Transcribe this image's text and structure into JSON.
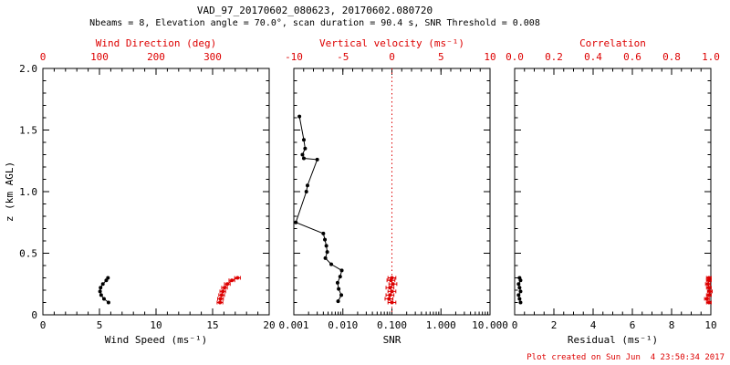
{
  "title": "VAD_97_20170602_080623, 20170602.080720",
  "subtitle": "Nbeams = 8, Elevation angle = 70.0°, scan duration = 90.4 s, SNR Threshold = 0.008",
  "footer": "Plot created on Sun Jun  4 23:50:34 2017",
  "colors": {
    "axis": "#000000",
    "accent": "#dd0000"
  },
  "chart_data": {
    "type": "scatter",
    "y_axis": {
      "label": "z (km AGL)",
      "lim": [
        0,
        2
      ],
      "minor_step": 0.1,
      "ticks": [
        {
          "v": 0,
          "label": "0"
        },
        {
          "v": 0.5,
          "label": "0.5"
        },
        {
          "v": 1.0,
          "label": "1.0"
        },
        {
          "v": 1.5,
          "label": "1.5"
        },
        {
          "v": 2.0,
          "label": "2.0"
        }
      ]
    },
    "panels": [
      {
        "name": "wind",
        "bottom_axis": {
          "label": "Wind Speed (ms⁻¹)",
          "lim": [
            0,
            20
          ],
          "scale": "linear",
          "minor_step": 1,
          "ticks": [
            {
              "v": 0,
              "label": "0"
            },
            {
              "v": 5,
              "label": "5"
            },
            {
              "v": 10,
              "label": "10"
            },
            {
              "v": 15,
              "label": "15"
            },
            {
              "v": 20,
              "label": "20"
            }
          ]
        },
        "top_axis": {
          "label": "Wind Direction (deg)",
          "lim": [
            0,
            400
          ],
          "scale": "linear",
          "minor_step": 20,
          "ticks": [
            {
              "v": 0,
              "label": "0"
            },
            {
              "v": 100,
              "label": "100"
            },
            {
              "v": 200,
              "label": "200"
            },
            {
              "v": 300,
              "label": "300"
            }
          ]
        },
        "series": [
          {
            "name": "wind-speed",
            "axis": "bottom",
            "color": "#000000",
            "line": true,
            "points": [
              [
                5.8,
                0.1
              ],
              [
                5.4,
                0.13
              ],
              [
                5.15,
                0.16
              ],
              [
                5.05,
                0.19
              ],
              [
                5.1,
                0.22
              ],
              [
                5.3,
                0.25
              ],
              [
                5.6,
                0.28
              ],
              [
                5.75,
                0.3
              ]
            ]
          },
          {
            "name": "wind-direction",
            "axis": "top",
            "color": "#dd0000",
            "line": true,
            "xerr": 5,
            "points": [
              [
                313,
                0.1
              ],
              [
                314,
                0.13
              ],
              [
                316,
                0.16
              ],
              [
                318,
                0.19
              ],
              [
                321,
                0.22
              ],
              [
                326,
                0.25
              ],
              [
                334,
                0.28
              ],
              [
                344,
                0.3
              ]
            ]
          }
        ]
      },
      {
        "name": "snr",
        "bottom_axis": {
          "label": "SNR",
          "lim": [
            0.001,
            10
          ],
          "scale": "log",
          "ticks": [
            {
              "v": 0.001,
              "label": "0.001"
            },
            {
              "v": 0.01,
              "label": "0.010"
            },
            {
              "v": 0.1,
              "label": "0.100"
            },
            {
              "v": 1,
              "label": "1.000"
            },
            {
              "v": 10,
              "label": "10.000"
            }
          ]
        },
        "top_axis": {
          "label": "Vertical velocity (ms⁻¹)",
          "lim": [
            -10,
            10
          ],
          "scale": "linear",
          "minor_step": 1,
          "ticks": [
            {
              "v": -10,
              "label": "-10"
            },
            {
              "v": -5,
              "label": "-5"
            },
            {
              "v": 0,
              "label": "0"
            },
            {
              "v": 5,
              "label": "5"
            },
            {
              "v": 10,
              "label": "10"
            }
          ]
        },
        "ref_line": {
          "axis": "top",
          "value": 0
        },
        "series": [
          {
            "name": "snr-profile",
            "axis": "bottom",
            "color": "#000000",
            "line": true,
            "points": [
              [
                0.0013,
                1.61
              ],
              [
                0.0016,
                1.42
              ],
              [
                0.0017,
                1.35
              ],
              [
                0.0015,
                1.3
              ],
              [
                0.0016,
                1.27
              ],
              [
                0.003,
                1.26
              ],
              [
                0.0019,
                1.05
              ],
              [
                0.0018,
                1.0
              ],
              [
                0.0011,
                0.75
              ],
              [
                0.004,
                0.66
              ],
              [
                0.0043,
                0.61
              ],
              [
                0.0046,
                0.56
              ],
              [
                0.0048,
                0.51
              ],
              [
                0.0044,
                0.46
              ],
              [
                0.0058,
                0.41
              ],
              [
                0.0095,
                0.36
              ],
              [
                0.0088,
                0.31
              ],
              [
                0.0078,
                0.26
              ],
              [
                0.0082,
                0.21
              ],
              [
                0.0093,
                0.16
              ],
              [
                0.008,
                0.11
              ]
            ]
          },
          {
            "name": "vertical-velocity",
            "axis": "top",
            "color": "#dd0000",
            "line": true,
            "xerr": 0.4,
            "points": [
              [
                0.0,
                0.1
              ],
              [
                -0.3,
                0.13
              ],
              [
                -0.2,
                0.16
              ],
              [
                0.0,
                0.19
              ],
              [
                -0.2,
                0.22
              ],
              [
                0.1,
                0.25
              ],
              [
                -0.1,
                0.28
              ],
              [
                0.0,
                0.3
              ]
            ]
          }
        ]
      },
      {
        "name": "residual",
        "bottom_axis": {
          "label": "Residual (ms⁻¹)",
          "lim": [
            0,
            10
          ],
          "scale": "linear",
          "minor_step": 0.5,
          "ticks": [
            {
              "v": 0,
              "label": "0"
            },
            {
              "v": 2,
              "label": "2"
            },
            {
              "v": 4,
              "label": "4"
            },
            {
              "v": 6,
              "label": "6"
            },
            {
              "v": 8,
              "label": "8"
            },
            {
              "v": 10,
              "label": "10"
            }
          ]
        },
        "top_axis": {
          "label": "Correlation",
          "lim": [
            0,
            1
          ],
          "scale": "linear",
          "minor_step": 0.05,
          "ticks": [
            {
              "v": 0,
              "label": "0.0"
            },
            {
              "v": 0.2,
              "label": "0.2"
            },
            {
              "v": 0.4,
              "label": "0.4"
            },
            {
              "v": 0.6,
              "label": "0.6"
            },
            {
              "v": 0.8,
              "label": "0.8"
            },
            {
              "v": 1.0,
              "label": "1.0"
            }
          ]
        },
        "series": [
          {
            "name": "residual",
            "axis": "bottom",
            "color": "#000000",
            "line": true,
            "points": [
              [
                0.3,
                0.1
              ],
              [
                0.25,
                0.13
              ],
              [
                0.2,
                0.16
              ],
              [
                0.3,
                0.19
              ],
              [
                0.25,
                0.22
              ],
              [
                0.2,
                0.25
              ],
              [
                0.3,
                0.28
              ],
              [
                0.25,
                0.3
              ]
            ]
          },
          {
            "name": "correlation",
            "axis": "top",
            "color": "#dd0000",
            "line": true,
            "xerr": 0.012,
            "points": [
              [
                0.99,
                0.1
              ],
              [
                0.98,
                0.13
              ],
              [
                0.99,
                0.16
              ],
              [
                0.995,
                0.19
              ],
              [
                0.99,
                0.22
              ],
              [
                0.985,
                0.25
              ],
              [
                0.99,
                0.28
              ],
              [
                0.99,
                0.3
              ]
            ]
          }
        ]
      }
    ]
  }
}
